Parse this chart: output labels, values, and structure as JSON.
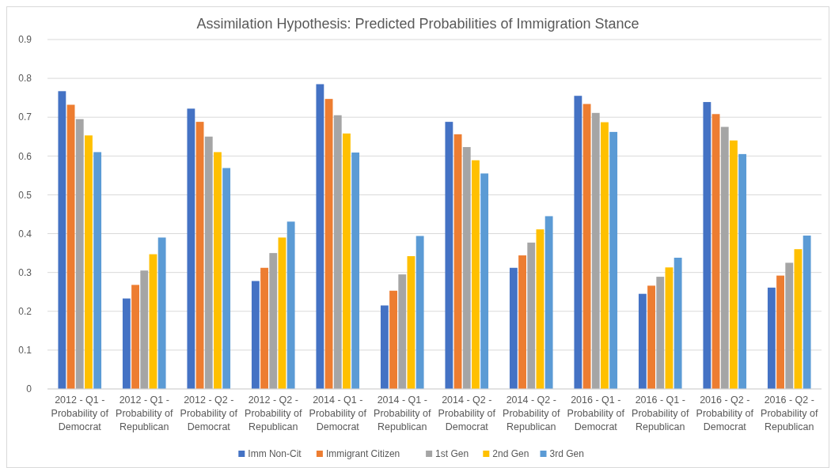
{
  "chart_data": {
    "type": "bar",
    "title": "Assimilation Hypothesis: Predicted Probabilities of Immigration Stance",
    "categories": [
      "2012 - Q1 - Probability of Democrat",
      "2012 - Q1 - Probability of Republican",
      "2012 - Q2 - Probability of Democrat",
      "2012 - Q2 - Probability of Republican",
      "2014 - Q1 - Probability of Democrat",
      "2014 - Q1 - Probability of Republican",
      "2014 - Q2 - Probability of Democrat",
      "2014 - Q2 - Probability of Republican",
      "2016 - Q1 - Probability of Democrat",
      "2016 - Q1 - Probability of Republican",
      "2016 - Q2 - Probability of Democrat",
      "2016 - Q2 - Probability of Republican"
    ],
    "series": [
      {
        "name": "Imm Non-Cit",
        "color": "#4472c4",
        "values": [
          0.767,
          0.233,
          0.722,
          0.278,
          0.785,
          0.215,
          0.688,
          0.312,
          0.755,
          0.245,
          0.739,
          0.261
        ]
      },
      {
        "name": "Immigrant Citizen",
        "color": "#ed7d31",
        "values": [
          0.732,
          0.268,
          0.688,
          0.312,
          0.747,
          0.253,
          0.656,
          0.344,
          0.734,
          0.266,
          0.708,
          0.292
        ]
      },
      {
        "name": "1st Gen",
        "color": "#a5a5a5",
        "values": [
          0.695,
          0.305,
          0.65,
          0.35,
          0.705,
          0.295,
          0.623,
          0.377,
          0.711,
          0.289,
          0.675,
          0.325
        ]
      },
      {
        "name": "2nd Gen",
        "color": "#ffc000",
        "values": [
          0.653,
          0.347,
          0.61,
          0.39,
          0.658,
          0.342,
          0.589,
          0.411,
          0.687,
          0.313,
          0.64,
          0.36
        ]
      },
      {
        "name": "3rd Gen",
        "color": "#5b9bd5",
        "values": [
          0.61,
          0.39,
          0.569,
          0.431,
          0.609,
          0.394,
          0.555,
          0.445,
          0.662,
          0.338,
          0.605,
          0.395
        ]
      }
    ],
    "ylim": [
      0,
      0.9
    ],
    "yticks": [
      0,
      0.1,
      0.2,
      0.3,
      0.4,
      0.5,
      0.6,
      0.7,
      0.8,
      0.9
    ],
    "grid": "y",
    "legend": "bottom"
  }
}
